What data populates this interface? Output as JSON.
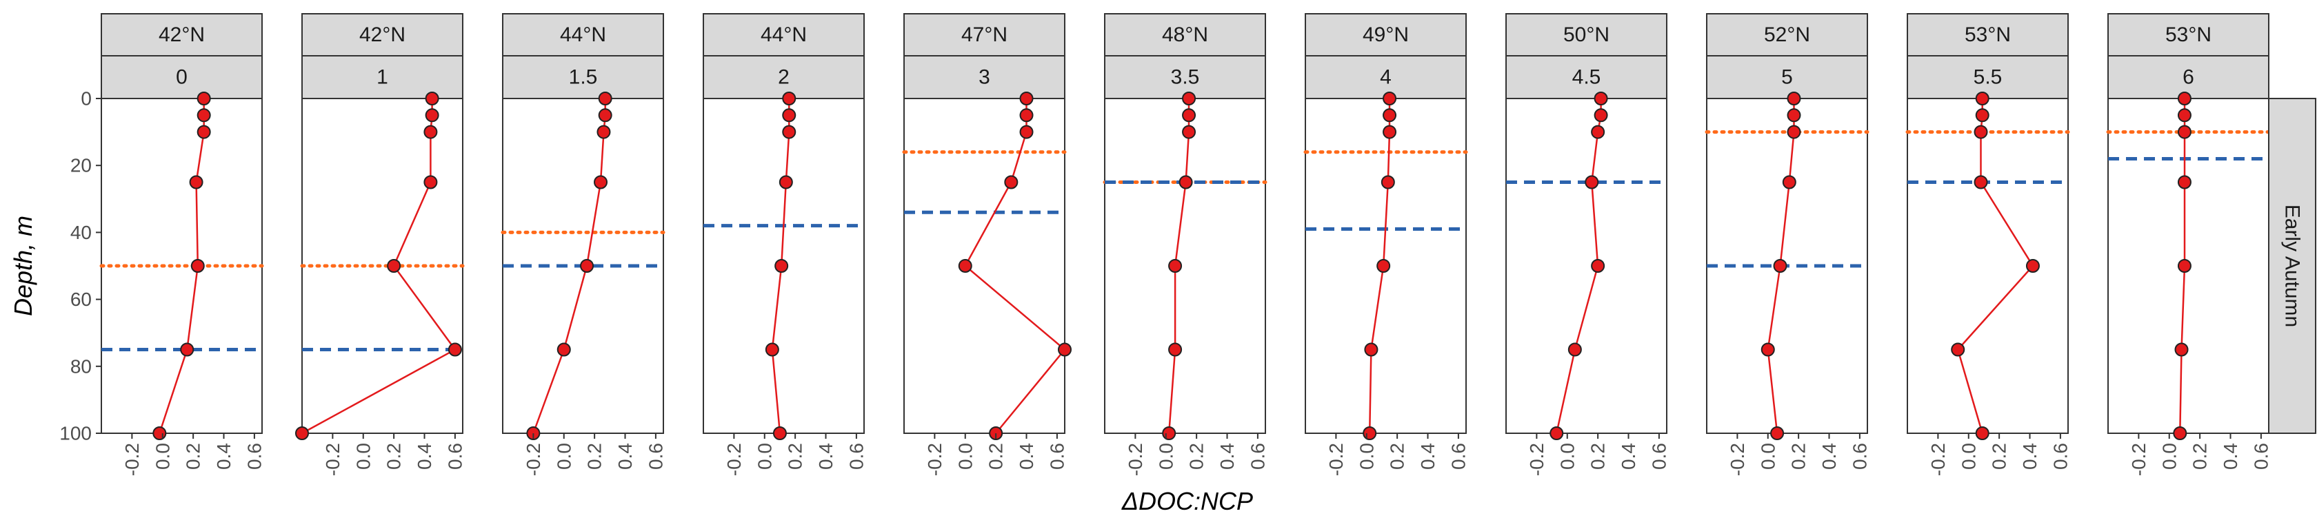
{
  "chart_data": {
    "type": "line",
    "xlabel": "ΔDOC:NCP",
    "ylabel": "Depth, m",
    "xlim": [
      -0.4,
      0.65
    ],
    "ylim": [
      100,
      0
    ],
    "x_ticks": [
      -0.2,
      0.0,
      0.2,
      0.4,
      0.6
    ],
    "x_tick_labels": [
      "-0.2",
      "0.0",
      "0.2",
      "0.4",
      "0.6"
    ],
    "y_ticks": [
      0,
      20,
      40,
      60,
      80,
      100
    ],
    "y_tick_labels": [
      "0",
      "20",
      "40",
      "60",
      "80",
      "100"
    ],
    "row_label": "Early Autumn",
    "colors": {
      "line": "#e31a1c",
      "point_fill": "#e31a1c",
      "point_stroke": "#222222",
      "dotted_line": "#ff6a1a",
      "dashed_line": "#2c63ad"
    },
    "panels": [
      {
        "lat": "42°N",
        "id": "0",
        "points": [
          {
            "x": 0.27,
            "y": 0
          },
          {
            "x": 0.27,
            "y": 5
          },
          {
            "x": 0.27,
            "y": 10
          },
          {
            "x": 0.22,
            "y": 25
          },
          {
            "x": 0.23,
            "y": 50
          },
          {
            "x": 0.16,
            "y": 75
          },
          {
            "x": -0.02,
            "y": 100
          }
        ],
        "dotted": 50,
        "dashed": 75
      },
      {
        "lat": "42°N",
        "id": "1",
        "points": [
          {
            "x": 0.45,
            "y": 0
          },
          {
            "x": 0.45,
            "y": 5
          },
          {
            "x": 0.44,
            "y": 10
          },
          {
            "x": 0.44,
            "y": 25
          },
          {
            "x": 0.2,
            "y": 50
          },
          {
            "x": 0.6,
            "y": 75
          },
          {
            "x": -0.4,
            "y": 100
          }
        ],
        "dotted": 50,
        "dashed": 75
      },
      {
        "lat": "44°N",
        "id": "1.5",
        "points": [
          {
            "x": 0.27,
            "y": 0
          },
          {
            "x": 0.27,
            "y": 5
          },
          {
            "x": 0.26,
            "y": 10
          },
          {
            "x": 0.24,
            "y": 25
          },
          {
            "x": 0.15,
            "y": 50
          },
          {
            "x": 0.0,
            "y": 75
          },
          {
            "x": -0.2,
            "y": 100
          }
        ],
        "dotted": 40,
        "dashed": 50
      },
      {
        "lat": "44°N",
        "id": "2",
        "points": [
          {
            "x": 0.16,
            "y": 0
          },
          {
            "x": 0.16,
            "y": 5
          },
          {
            "x": 0.16,
            "y": 10
          },
          {
            "x": 0.14,
            "y": 25
          },
          {
            "x": 0.11,
            "y": 50
          },
          {
            "x": 0.05,
            "y": 75
          },
          {
            "x": 0.1,
            "y": 100
          }
        ],
        "dotted": null,
        "dashed": 38
      },
      {
        "lat": "47°N",
        "id": "3",
        "points": [
          {
            "x": 0.4,
            "y": 0
          },
          {
            "x": 0.4,
            "y": 5
          },
          {
            "x": 0.4,
            "y": 10
          },
          {
            "x": 0.3,
            "y": 25
          },
          {
            "x": 0.0,
            "y": 50
          },
          {
            "x": 0.65,
            "y": 75
          },
          {
            "x": 0.2,
            "y": 100
          }
        ],
        "dotted": 16,
        "dashed": 34
      },
      {
        "lat": "48°N",
        "id": "3.5",
        "points": [
          {
            "x": 0.15,
            "y": 0
          },
          {
            "x": 0.15,
            "y": 5
          },
          {
            "x": 0.15,
            "y": 10
          },
          {
            "x": 0.13,
            "y": 25
          },
          {
            "x": 0.06,
            "y": 50
          },
          {
            "x": 0.06,
            "y": 75
          },
          {
            "x": 0.02,
            "y": 100
          }
        ],
        "dotted": 25,
        "dashed": 25
      },
      {
        "lat": "49°N",
        "id": "4",
        "points": [
          {
            "x": 0.15,
            "y": 0
          },
          {
            "x": 0.15,
            "y": 5
          },
          {
            "x": 0.15,
            "y": 10
          },
          {
            "x": 0.14,
            "y": 25
          },
          {
            "x": 0.11,
            "y": 50
          },
          {
            "x": 0.03,
            "y": 75
          },
          {
            "x": 0.02,
            "y": 100
          }
        ],
        "dotted": 16,
        "dashed": 39
      },
      {
        "lat": "50°N",
        "id": "4.5",
        "points": [
          {
            "x": 0.22,
            "y": 0
          },
          {
            "x": 0.22,
            "y": 5
          },
          {
            "x": 0.2,
            "y": 10
          },
          {
            "x": 0.16,
            "y": 25
          },
          {
            "x": 0.2,
            "y": 50
          },
          {
            "x": 0.05,
            "y": 75
          },
          {
            "x": -0.07,
            "y": 100
          }
        ],
        "dotted": null,
        "dashed": 25
      },
      {
        "lat": "52°N",
        "id": "5",
        "points": [
          {
            "x": 0.17,
            "y": 0
          },
          {
            "x": 0.17,
            "y": 5
          },
          {
            "x": 0.17,
            "y": 10
          },
          {
            "x": 0.14,
            "y": 25
          },
          {
            "x": 0.08,
            "y": 50
          },
          {
            "x": 0.0,
            "y": 75
          },
          {
            "x": 0.06,
            "y": 100
          }
        ],
        "dotted": 10,
        "dashed": 50
      },
      {
        "lat": "53°N",
        "id": "5.5",
        "points": [
          {
            "x": 0.09,
            "y": 0
          },
          {
            "x": 0.09,
            "y": 5
          },
          {
            "x": 0.08,
            "y": 10
          },
          {
            "x": 0.08,
            "y": 25
          },
          {
            "x": 0.42,
            "y": 50
          },
          {
            "x": -0.07,
            "y": 75
          },
          {
            "x": 0.09,
            "y": 100
          }
        ],
        "dotted": 10,
        "dashed": 25
      },
      {
        "lat": "53°N",
        "id": "6",
        "points": [
          {
            "x": 0.1,
            "y": 0
          },
          {
            "x": 0.1,
            "y": 5
          },
          {
            "x": 0.1,
            "y": 10
          },
          {
            "x": 0.1,
            "y": 25
          },
          {
            "x": 0.1,
            "y": 50
          },
          {
            "x": 0.08,
            "y": 75
          },
          {
            "x": 0.07,
            "y": 100
          }
        ],
        "dotted": 10,
        "dashed": 18
      }
    ]
  }
}
